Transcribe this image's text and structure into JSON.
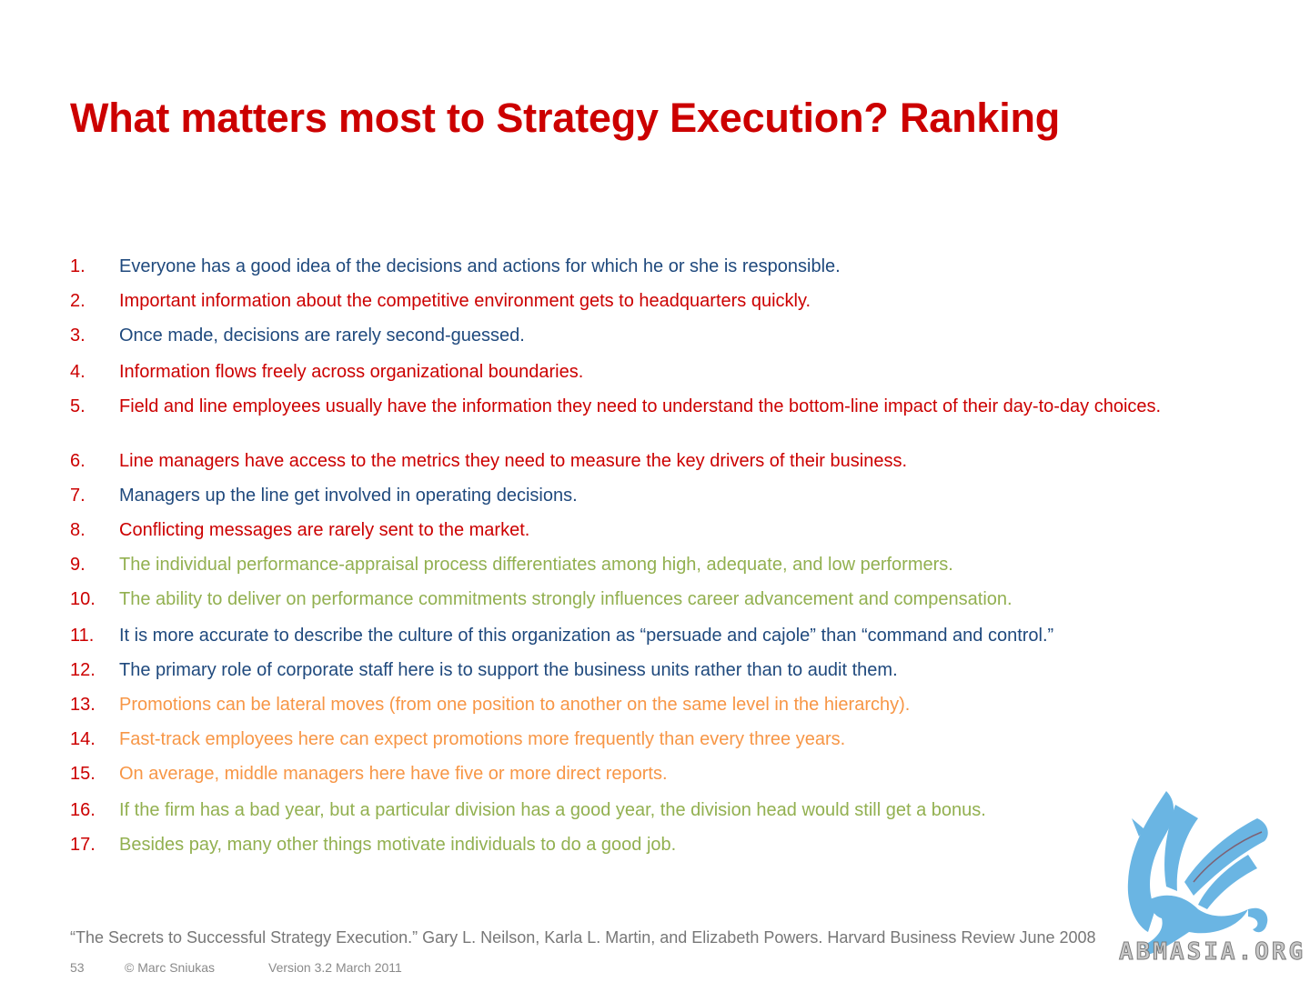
{
  "title": "What matters most to Strategy Execution? Ranking",
  "items": [
    {
      "num": "1.",
      "text": "Everyone has a good idea of the decisions and actions for which he or she is responsible.",
      "color": "#1f497d"
    },
    {
      "num": "2.",
      "text": "Important information about the competitive environment gets to headquarters quickly.",
      "color": "#cc0000"
    },
    {
      "num": "3.",
      "text": "Once made, decisions are rarely second-guessed.",
      "color": "#1f497d"
    },
    {
      "num": "4.",
      "text": "Information flows freely across organizational boundaries.",
      "color": "#cc0000"
    },
    {
      "num": "5.",
      "text": "Field and line employees usually have the information they need to understand the bottom-line impact of their day-to-day choices.",
      "color": "#cc0000"
    },
    {
      "num": "6.",
      "text": "Line managers have access to the metrics they need to measure the key drivers of their business.",
      "color": "#cc0000"
    },
    {
      "num": "7.",
      "text": "Managers up the line get involved in operating decisions.",
      "color": "#1f497d"
    },
    {
      "num": "8.",
      "text": "Conflicting messages are rarely sent to the market.",
      "color": "#cc0000"
    },
    {
      "num": "9.",
      "text": "The individual performance-appraisal process differentiates among high, adequate, and low performers.",
      "color": "#92b050"
    },
    {
      "num": "10.",
      "text": "The ability to deliver on performance commitments strongly influences career advancement and compensation.",
      "color": "#92b050"
    },
    {
      "num": "11.",
      "text": "It is more accurate to describe the culture of this organization as “persuade and cajole” than “command and control.”",
      "color": "#1f497d"
    },
    {
      "num": "12.",
      "text": "The primary role of corporate staff here is to support the business units rather than to audit them.",
      "color": "#1f497d"
    },
    {
      "num": "13.",
      "text": "Promotions can be lateral moves (from one position to another on the same level in the hierarchy).",
      "color": "#f79646"
    },
    {
      "num": "14.",
      "text": "Fast-track employees here can expect promotions more frequently than every three years.",
      "color": "#f79646"
    },
    {
      "num": "15.",
      "text": "On average, middle managers here have five or more direct reports.",
      "color": "#f79646"
    },
    {
      "num": "16.",
      "text": "If the firm has a bad year, but a particular division has a good year, the division head would still get a bonus.",
      "color": "#92b050"
    },
    {
      "num": "17.",
      "text": "Besides pay, many other things motivate individuals to do a good job.",
      "color": "#92b050"
    }
  ],
  "citation": "“The Secrets to Successful Strategy Execution.” Gary L. Neilson, Karla L. Martin, and Elizabeth Powers. Harvard Business Review June 2008",
  "footer": {
    "page": "53",
    "copyright": "© Marc Sniukas",
    "version": "Version 3.2 March 2011"
  },
  "watermark": {
    "text": "ABMASIA.ORG",
    "icon": "griffin-logo-icon"
  }
}
